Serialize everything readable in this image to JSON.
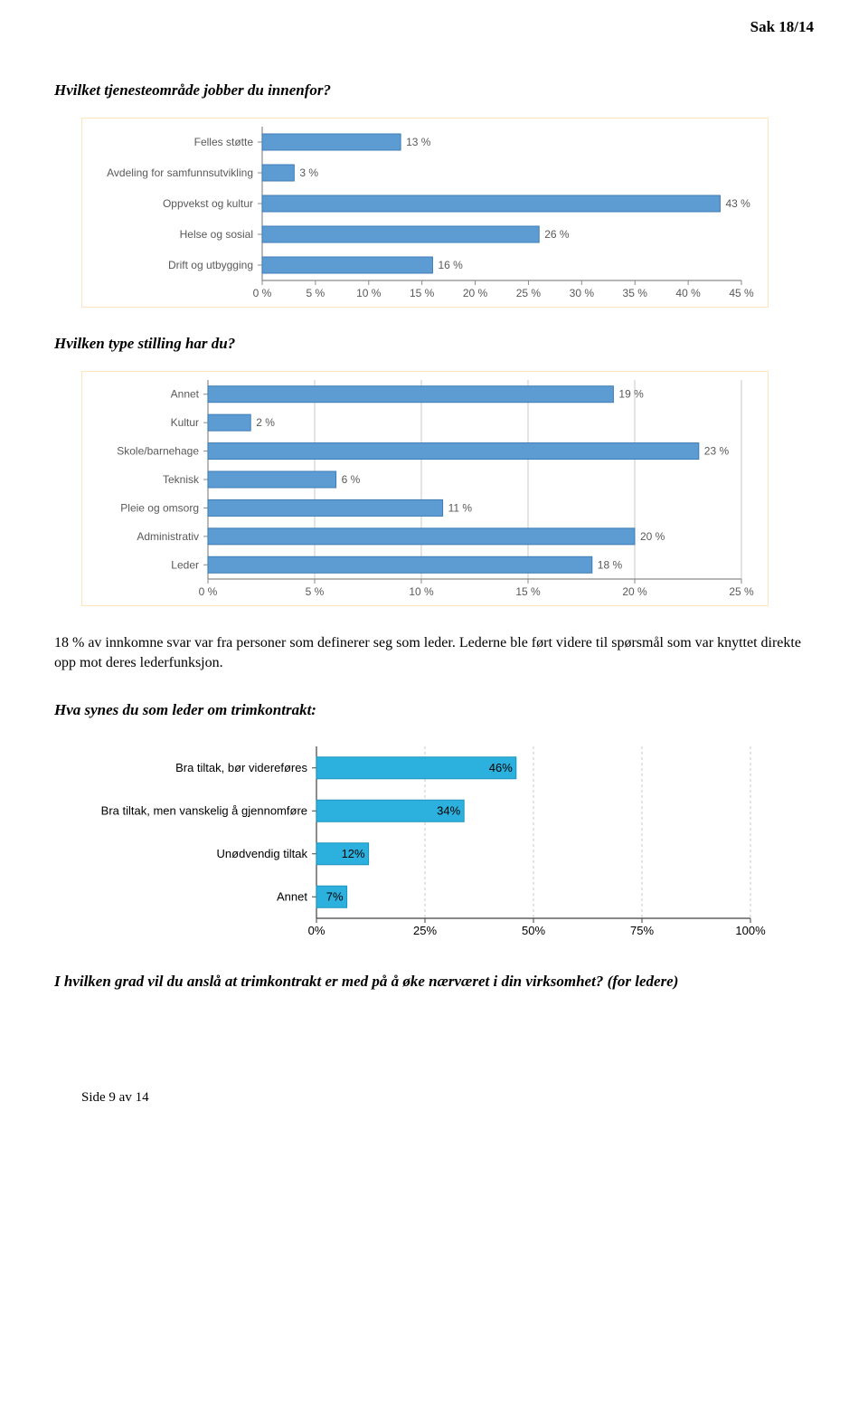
{
  "header": {
    "case_label": "Sak 18/14"
  },
  "q1": {
    "text": "Hvilket tjenesteområde jobber du innenfor?"
  },
  "chart1": {
    "type": "bar-horizontal",
    "categories": [
      "Felles støtte",
      "Avdeling for samfunnsutvikling",
      "Oppvekst og kultur",
      "Helse og sosial",
      "Drift og utbygging"
    ],
    "values": [
      13,
      3,
      43,
      26,
      16
    ],
    "value_labels": [
      "13 %",
      "3 %",
      "43 %",
      "26 %",
      "16 %"
    ],
    "bar_color": "#5d9bd3",
    "bar_border": "#3d7db5",
    "xlim": [
      0,
      45
    ],
    "xtick_step": 5,
    "xtick_labels": [
      "0 %",
      "5 %",
      "10 %",
      "15 %",
      "20 %",
      "25 %",
      "30 %",
      "35 %",
      "40 %",
      "45 %"
    ],
    "axis_color": "#8a8a8a",
    "tick_color": "#8a8a8a",
    "cat_fontsize": 12,
    "tick_fontsize": 12,
    "cat_color": "#595959",
    "border_color": "#ffe5bf",
    "background": "#ffffff"
  },
  "q2": {
    "text": "Hvilken type stilling har du?"
  },
  "chart2": {
    "type": "bar-horizontal",
    "categories": [
      "Annet",
      "Kultur",
      "Skole/barnehage",
      "Teknisk",
      "Pleie og omsorg",
      "Administrativ",
      "Leder"
    ],
    "values": [
      19,
      2,
      23,
      6,
      11,
      20,
      18
    ],
    "value_labels": [
      "19 %",
      "2 %",
      "23 %",
      "6 %",
      "11 %",
      "20 %",
      "18 %"
    ],
    "bar_color": "#5d9bd3",
    "bar_border": "#3d7db5",
    "xlim": [
      0,
      25
    ],
    "xtick_step": 5,
    "xtick_labels": [
      "0 %",
      "5 %",
      "10 %",
      "15 %",
      "20 %",
      "25 %"
    ],
    "axis_color": "#8a8a8a",
    "grid_color": "#c9c9c9",
    "cat_fontsize": 12,
    "tick_fontsize": 12,
    "cat_color": "#595959",
    "border_color": "#ffe5bf",
    "background": "#ffffff"
  },
  "para1": {
    "text": "18 % av innkomne svar var fra personer som definerer seg som leder. Lederne ble ført videre til spørsmål som var knyttet direkte opp mot deres lederfunksjon."
  },
  "q3": {
    "text": "Hva synes du som leder om trimkontrakt:"
  },
  "chart3": {
    "type": "bar-horizontal",
    "categories": [
      "Bra tiltak, bør videreføres",
      "Bra tiltak, men vanskelig å gjennomføre",
      "Unødvendig tiltak",
      "Annet"
    ],
    "values": [
      46,
      34,
      12,
      7
    ],
    "value_labels": [
      "46%",
      "34%",
      "12%",
      "7%"
    ],
    "bar_color": "#2cb1de",
    "bar_border": "#1e93bc",
    "xlim": [
      0,
      100
    ],
    "xtick_step": 25,
    "xtick_labels": [
      "0%",
      "25%",
      "50%",
      "75%",
      "100%"
    ],
    "axis_color": "#404040",
    "grid_color": "#c9c9c9",
    "cat_fontsize": 13,
    "tick_fontsize": 13,
    "cat_color": "#000000",
    "background": "#ffffff"
  },
  "q4": {
    "text": "I hvilken grad vil du anslå at trimkontrakt er med på å øke nærværet i din virksomhet? (for ledere)"
  },
  "footer": {
    "text": "Side 9 av 14"
  }
}
